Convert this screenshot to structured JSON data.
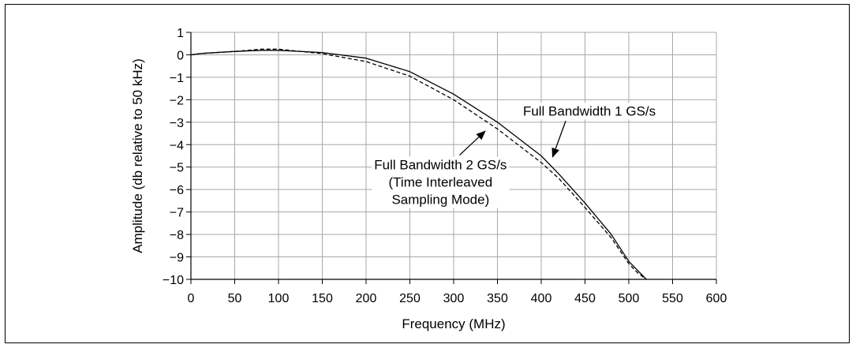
{
  "chart_data": {
    "type": "line",
    "xlabel": "Frequency (MHz)",
    "ylabel": "Amplitude (db relative to 50 kHz)",
    "xlim": [
      0,
      600
    ],
    "ylim": [
      -10,
      1
    ],
    "x_ticks": [
      0,
      50,
      100,
      150,
      200,
      250,
      300,
      350,
      400,
      450,
      500,
      550,
      600
    ],
    "y_ticks": [
      1,
      0,
      -1,
      -2,
      -3,
      -4,
      -5,
      -6,
      -7,
      -8,
      -9,
      -10
    ],
    "x_tick_labels": [
      "0",
      "50",
      "100",
      "150",
      "200",
      "250",
      "300",
      "350",
      "400",
      "450",
      "500",
      "550",
      "600"
    ],
    "y_tick_labels": [
      "1",
      "0",
      "−1",
      "−2",
      "−3",
      "−4",
      "−5",
      "−6",
      "−7",
      "−8",
      "−9",
      "−10"
    ],
    "grid": true,
    "series": [
      {
        "style": "solid",
        "color": "#000000",
        "x": [
          0,
          10,
          20,
          50,
          80,
          100,
          150,
          200,
          250,
          300,
          350,
          400,
          420,
          450,
          480,
          500,
          510,
          520
        ],
        "y": [
          0.0,
          0.05,
          0.08,
          0.15,
          0.2,
          0.2,
          0.1,
          -0.15,
          -0.75,
          -1.75,
          -3.0,
          -4.5,
          -5.3,
          -6.6,
          -8.0,
          -9.2,
          -9.6,
          -10.0
        ]
      },
      {
        "style": "dashed",
        "color": "#000000",
        "x": [
          0,
          10,
          20,
          50,
          80,
          100,
          150,
          200,
          250,
          300,
          350,
          400,
          420,
          450,
          480,
          500,
          510,
          520
        ],
        "y": [
          0.0,
          0.05,
          0.08,
          0.15,
          0.25,
          0.25,
          0.05,
          -0.3,
          -0.95,
          -2.0,
          -3.3,
          -4.8,
          -5.5,
          -6.8,
          -8.15,
          -9.3,
          -9.7,
          -10.0
        ]
      }
    ],
    "annotations": [
      {
        "lines": [
          "Full Bandwidth 1 GS/s"
        ],
        "text_anchor_data": [
          455,
          -2.7
        ],
        "arrow_tip_data": [
          413,
          -4.55
        ]
      },
      {
        "lines": [
          "Full Bandwidth 2 GS/s",
          "(Time Interleaved",
          "Sampling Mode)"
        ],
        "text_anchor_data": [
          285,
          -5.1
        ],
        "arrow_tip_data": [
          336,
          -3.4
        ]
      }
    ]
  }
}
